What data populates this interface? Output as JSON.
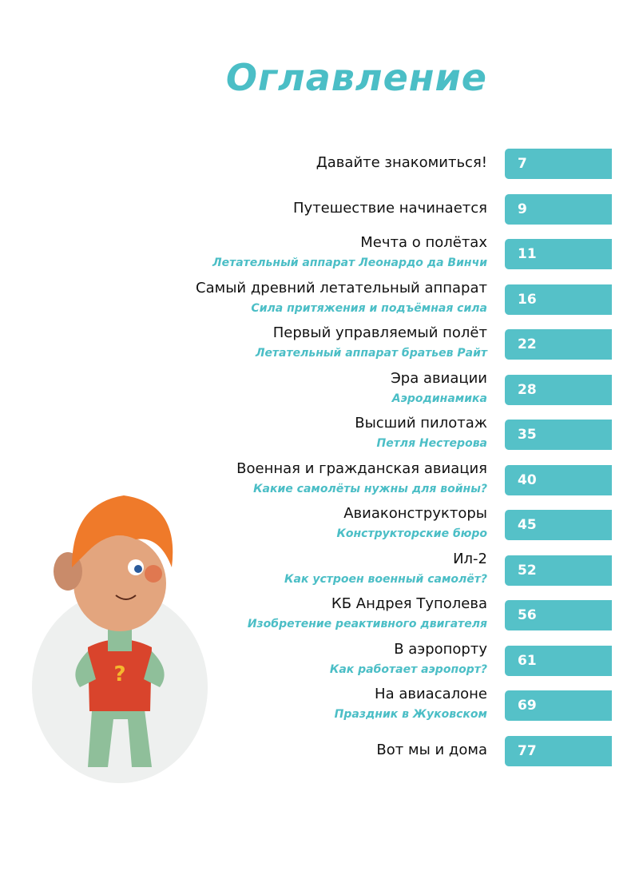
{
  "header": {
    "title": "Оглавление"
  },
  "entries": [
    {
      "title": "Давайте знакомиться!",
      "page": 7
    },
    {
      "title": "Путешествие начинается",
      "page": 9
    },
    {
      "title": "Мечта о полётах",
      "subtitle": "Летательный аппарат Леонардо да Винчи",
      "page": 11
    },
    {
      "title": "Самый древний летательный аппарат",
      "subtitle": "Сила притяжения и подъёмная сила",
      "page": 16
    },
    {
      "title": "Первый управляемый полёт",
      "subtitle": "Летательный аппарат братьев Райт",
      "page": 22
    },
    {
      "title": "Эра авиации",
      "subtitle": "Аэродинамика",
      "page": 28
    },
    {
      "title": "Высший пилотаж",
      "subtitle": "Петля Нестерова",
      "page": 35
    },
    {
      "title": "Военная и гражданская авиация",
      "subtitle": "Какие самолёты нужны для войны?",
      "page": 40
    },
    {
      "title": "Авиаконструкторы",
      "subtitle": "Конструкторские бюро",
      "page": 45
    },
    {
      "title": "Ил-2",
      "subtitle": "Как устроен военный самолёт?",
      "page": 52
    },
    {
      "title": "КБ Андрея Туполева",
      "subtitle": "Изобретение реактивного двигателя",
      "page": 56
    },
    {
      "title": "В аэропорту",
      "subtitle": "Как работает аэропорт?",
      "page": 61
    },
    {
      "title": "На авиасалоне",
      "subtitle": "Праздник в Жуковском",
      "page": 69
    },
    {
      "title": "Вот мы и дома",
      "page": 77
    }
  ]
}
